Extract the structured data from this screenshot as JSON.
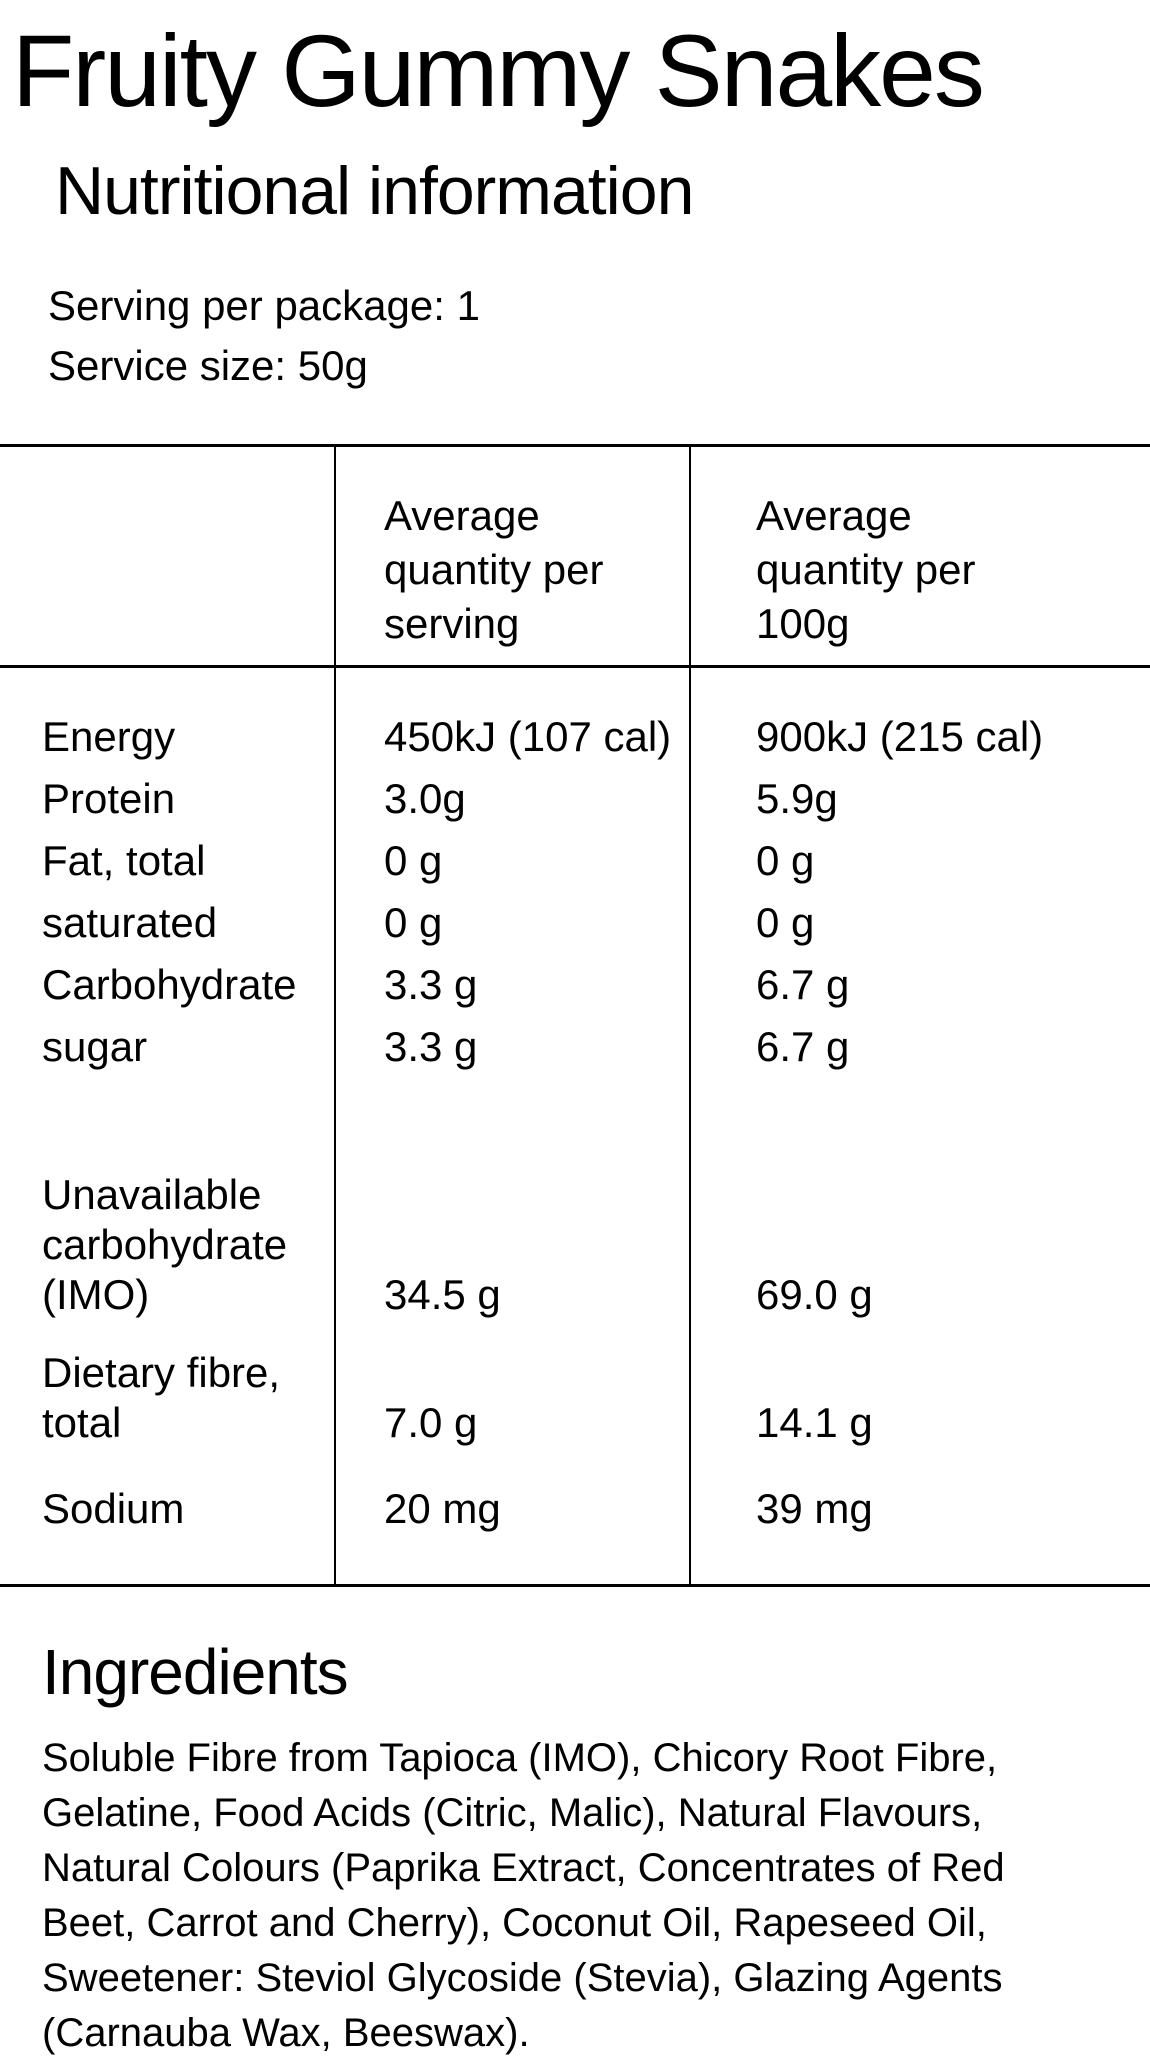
{
  "header": {
    "title": "Fruity Gummy Snakes",
    "subtitle": "Nutritional information"
  },
  "serving": {
    "per_package": "Serving per package: 1",
    "size": "Service size: 50g"
  },
  "table": {
    "header_per_serving": "Average\nquantity per\nserving",
    "header_per_100g": "Average\nquantity per\n100g",
    "rows": [
      {
        "label": "Energy",
        "per_serving": "450kJ (107 cal)",
        "per_100g": "900kJ (215 cal)"
      },
      {
        "label": "Protein",
        "per_serving": "3.0g",
        "per_100g": "5.9g"
      },
      {
        "label": "Fat, total",
        "per_serving": "0 g",
        "per_100g": "0 g"
      },
      {
        "label": "saturated",
        "per_serving": "0 g",
        "per_100g": "0 g"
      },
      {
        "label": "Carbohydrate",
        "per_serving": "3.3 g",
        "per_100g": "6.7 g"
      },
      {
        "label": "sugar",
        "per_serving": "3.3 g",
        "per_100g": "6.7 g"
      },
      {
        "label": "Unavailable\ncarbohydrate\n(IMO)",
        "per_serving": "34.5 g",
        "per_100g": "69.0 g"
      },
      {
        "label": "Dietary fibre,\ntotal",
        "per_serving": "7.0 g",
        "per_100g": "14.1 g"
      },
      {
        "label": "Sodium",
        "per_serving": "20 mg",
        "per_100g": "39 mg"
      }
    ]
  },
  "ingredients": {
    "heading": "Ingredients",
    "text": "Soluble Fibre from Tapioca (IMO), Chicory Root Fibre,\nGelatine, Food Acids (Citric, Malic), Natural Flavours,\nNatural Colours (Paprika Extract, Concentrates of Red\nBeet, Carrot and Cherry), Coconut Oil, Rapeseed Oil,\nSweetener: Steviol Glycoside (Stevia), Glazing Agents\n(Carnauba Wax, Beeswax)."
  },
  "colors": {
    "text": "#000000",
    "background": "#ffffff",
    "border": "#000000"
  }
}
